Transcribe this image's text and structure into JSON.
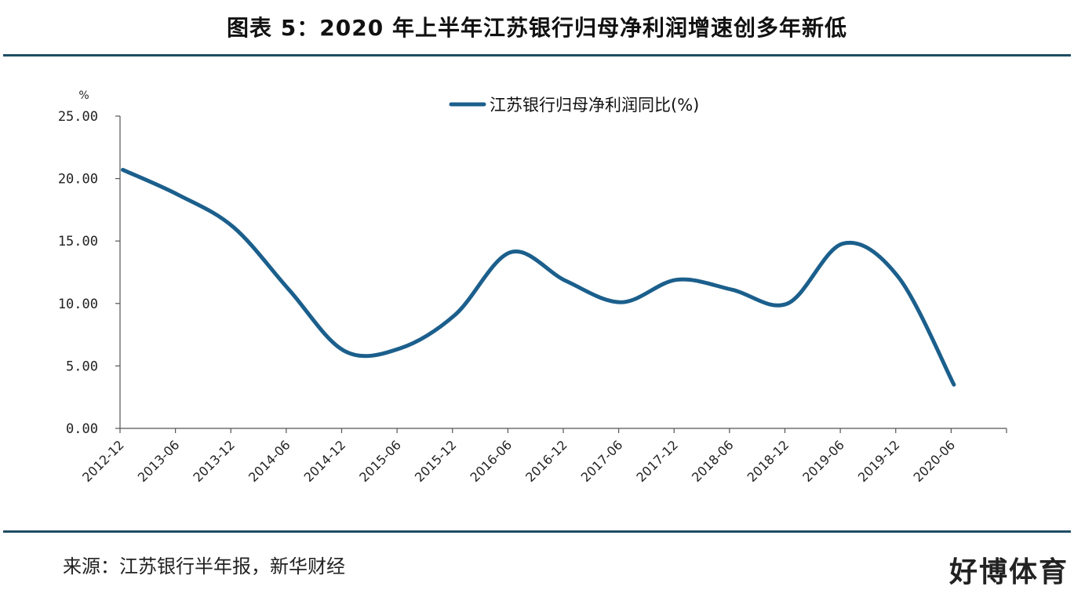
{
  "title": "图表 5：2020 年上半年江苏银行归母净利润增速创多年新低",
  "source": "来源：江苏银行半年报，新华财经",
  "watermark": "好博体育",
  "colors": {
    "line": "#1b5f8c",
    "rule": "#1f4e64",
    "axis": "#555555"
  },
  "chart_data": {
    "type": "line",
    "y_unit": "%",
    "ylim": [
      0,
      25
    ],
    "yticks": [
      "25.00",
      "20.00",
      "15.00",
      "10.00",
      "5.00",
      "0.00"
    ],
    "ytick_values": [
      25,
      20,
      15,
      10,
      5,
      0
    ],
    "categories": [
      "2012-12",
      "2013-06",
      "2013-12",
      "2014-06",
      "2014-12",
      "2015-06",
      "2015-12",
      "2016-06",
      "2016-12",
      "2017-06",
      "2017-12",
      "2018-06",
      "2018-12",
      "2019-06",
      "2019-12",
      "2020-06"
    ],
    "series": [
      {
        "name": "江苏银行归母净利润同比(%)",
        "values": [
          20.7,
          18.7,
          16.1,
          11.1,
          6.2,
          6.4,
          9.1,
          14.1,
          11.8,
          10.1,
          11.9,
          11.1,
          10.0,
          14.8,
          12.1,
          3.5
        ]
      }
    ],
    "legend_position": "top-center",
    "grid": false
  }
}
